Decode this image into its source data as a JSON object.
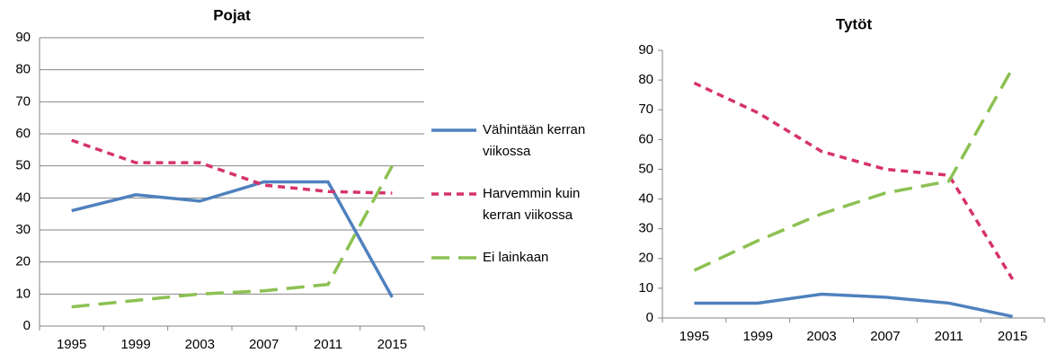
{
  "chart_data": [
    {
      "type": "line",
      "title": "Pojat",
      "categories": [
        "1995",
        "1999",
        "2003",
        "2007",
        "2011",
        "2015"
      ],
      "series": [
        {
          "name": "Vähintään kerran viikossa",
          "color": "#4f81bd",
          "values": [
            36,
            41,
            39,
            45,
            45,
            9
          ]
        },
        {
          "name": "Harvemmin kuin kerran viikossa",
          "color": "#d6336c",
          "values": [
            58,
            51,
            51,
            44,
            42,
            41.5
          ]
        },
        {
          "name": "Ei lainkaan",
          "color": "#8cc152",
          "values": [
            6,
            8,
            10,
            11,
            13,
            50
          ]
        }
      ],
      "ylim": [
        0,
        90
      ],
      "yticks": [
        0,
        10,
        20,
        30,
        40,
        50,
        60,
        70,
        80,
        90
      ],
      "grid": true,
      "legend": "right"
    },
    {
      "type": "line",
      "title": "Tytöt",
      "categories": [
        "1995",
        "1999",
        "2003",
        "2007",
        "2011",
        "2015"
      ],
      "series": [
        {
          "color": "#4f81bd",
          "values": [
            5,
            5,
            8,
            7,
            5,
            0.5
          ]
        },
        {
          "color": "#d6336c",
          "values": [
            79,
            69,
            56,
            50,
            48,
            13
          ]
        },
        {
          "color": "#8cc152",
          "values": [
            16,
            26,
            35,
            42,
            46,
            84
          ]
        }
      ],
      "ylim": [
        0,
        90
      ],
      "yticks": [
        0,
        10,
        20,
        30,
        40,
        50,
        60,
        70,
        80,
        90
      ],
      "grid": false
    }
  ]
}
